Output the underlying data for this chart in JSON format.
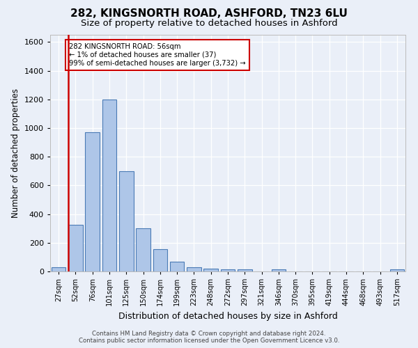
{
  "title": "282, KINGSNORTH ROAD, ASHFORD, TN23 6LU",
  "subtitle": "Size of property relative to detached houses in Ashford",
  "xlabel": "Distribution of detached houses by size in Ashford",
  "ylabel": "Number of detached properties",
  "categories": [
    "27sqm",
    "52sqm",
    "76sqm",
    "101sqm",
    "125sqm",
    "150sqm",
    "174sqm",
    "199sqm",
    "223sqm",
    "248sqm",
    "272sqm",
    "297sqm",
    "321sqm",
    "346sqm",
    "370sqm",
    "395sqm",
    "419sqm",
    "444sqm",
    "468sqm",
    "493sqm",
    "517sqm"
  ],
  "values": [
    30,
    325,
    970,
    1200,
    700,
    300,
    155,
    70,
    30,
    20,
    15,
    15,
    0,
    15,
    0,
    0,
    0,
    0,
    0,
    0,
    15
  ],
  "bar_color": "#aec6e8",
  "bar_edge_color": "#4a7bb5",
  "vline_color": "#cc0000",
  "annotation_text": "282 KINGSNORTH ROAD: 56sqm\n← 1% of detached houses are smaller (37)\n99% of semi-detached houses are larger (3,732) →",
  "annotation_box_color": "#cc0000",
  "ylim": [
    0,
    1650
  ],
  "yticks": [
    0,
    200,
    400,
    600,
    800,
    1000,
    1200,
    1400,
    1600
  ],
  "footer_line1": "Contains HM Land Registry data © Crown copyright and database right 2024.",
  "footer_line2": "Contains public sector information licensed under the Open Government Licence v3.0.",
  "bg_color": "#eaeff8",
  "title_fontsize": 11,
  "subtitle_fontsize": 9.5,
  "xlabel_fontsize": 9,
  "ylabel_fontsize": 8.5
}
